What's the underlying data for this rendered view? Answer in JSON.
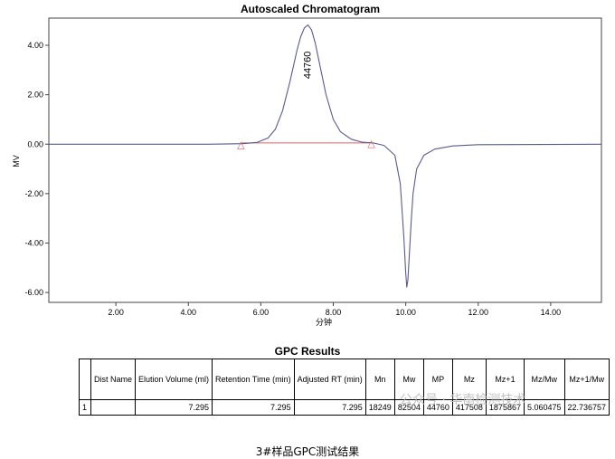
{
  "chart_data": {
    "type": "line",
    "title": "Autoscaled Chromatogram",
    "xlabel": "分钟",
    "ylabel": "MV",
    "xlim": [
      0.15,
      15.4
    ],
    "ylim": [
      -6.4,
      5.1
    ],
    "x_ticks": [
      2,
      4,
      6,
      8,
      10,
      12,
      14
    ],
    "x_tick_labels": [
      "2.00",
      "4.00",
      "6.00",
      "8.00",
      "10.00",
      "12.00",
      "14.00"
    ],
    "y_ticks": [
      4,
      2,
      0,
      -2,
      -4,
      -6
    ],
    "y_tick_labels": [
      "4.00",
      "2.00",
      "0.00",
      "-2.00",
      "-4.00",
      "-6.00"
    ],
    "grid": false,
    "series": [
      {
        "color": "#5a5a8c",
        "x": [
          0.15,
          4.5,
          5.5,
          5.9,
          6.2,
          6.4,
          6.6,
          6.8,
          7.0,
          7.1,
          7.2,
          7.3,
          7.4,
          7.5,
          7.6,
          7.8,
          8.0,
          8.2,
          8.5,
          8.8,
          9.1,
          9.4,
          9.7,
          9.85,
          9.95,
          10.0,
          10.03,
          10.06,
          10.1,
          10.15,
          10.2,
          10.3,
          10.5,
          10.8,
          11.3,
          12.0,
          15.4
        ],
        "y": [
          0.0,
          0.0,
          0.02,
          0.07,
          0.25,
          0.6,
          1.35,
          2.5,
          3.8,
          4.35,
          4.7,
          4.82,
          4.62,
          4.1,
          3.4,
          2.0,
          1.0,
          0.5,
          0.2,
          0.08,
          0.05,
          -0.05,
          -0.45,
          -1.6,
          -3.8,
          -5.2,
          -5.78,
          -5.5,
          -4.4,
          -3.1,
          -2.0,
          -1.0,
          -0.45,
          -0.2,
          -0.07,
          -0.02,
          0.0
        ]
      }
    ],
    "baseline": {
      "color": "#e06060",
      "x": [
        5.45,
        9.05
      ],
      "y": [
        0.05,
        0.05
      ]
    },
    "annotations": [
      {
        "text": "44760",
        "x": 7.3,
        "y": 3.2,
        "rotation": -90
      },
      {
        "text": "△",
        "x": 5.45,
        "y": -0.15
      },
      {
        "text": "△",
        "x": 9.05,
        "y": -0.1
      }
    ]
  },
  "results": {
    "title": "GPC Results",
    "headers": [
      "",
      "Dist Name",
      "Elution Volume (ml)",
      "Retention Time (min)",
      "Adjusted RT (min)",
      "Mn",
      "Mw",
      "MP",
      "Mz",
      "Mz+1",
      "Mz/Mw",
      "Mz+1/Mw"
    ],
    "rows": [
      [
        "1",
        "",
        "7.295",
        "7.295",
        "7.295",
        "18249",
        "82504",
        "44760",
        "417508",
        "1875867",
        "5.060475",
        "22.736757"
      ]
    ]
  },
  "watermark": "公众号 · 华南检测技术",
  "caption": "3#样品GPC测试结果"
}
